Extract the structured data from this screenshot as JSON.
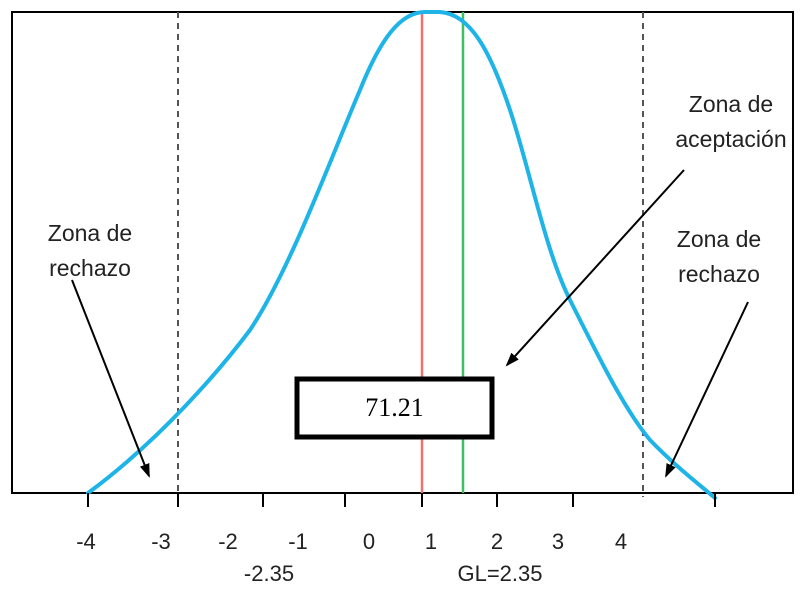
{
  "diagram": {
    "tick_labels": [
      "-4",
      "-3",
      "-2",
      "-1",
      "0",
      "1",
      "2",
      "3",
      "4"
    ],
    "labels": {
      "left_zone": [
        "Zona de",
        "rechazo"
      ],
      "right_zone": [
        "Zona de",
        "rechazo"
      ],
      "accept_zone": [
        "Zona de",
        "aceptación"
      ],
      "left_critical": "-2.35",
      "right_critical": "GL=2.35",
      "box_value": "71.21"
    },
    "colors": {
      "curve": "#1eb4e8",
      "red_line": "#f07070",
      "green_line": "#3cc060",
      "dashed": "#555555",
      "frame": "#000000"
    }
  }
}
